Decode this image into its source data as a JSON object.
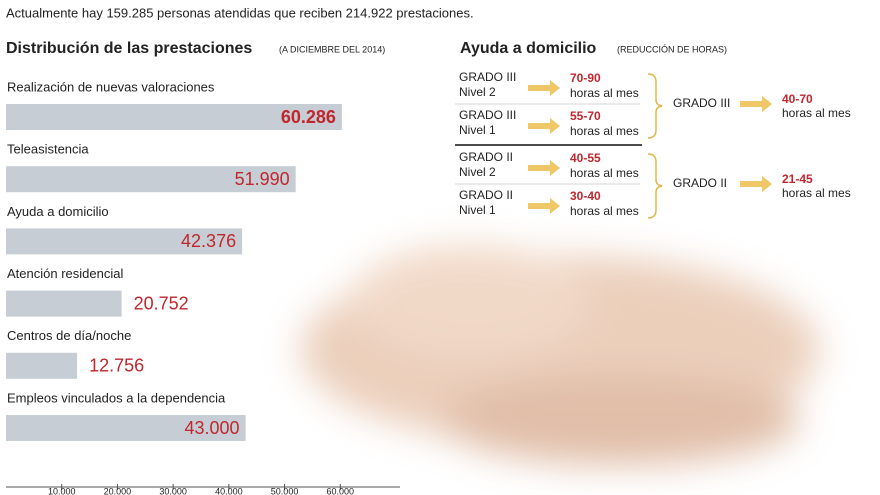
{
  "header": "Actualmente hay 159.285 personas atendidas que reciben 214.922 prestaciones.",
  "chart_data": {
    "type": "hbar",
    "title": "Distribución de las prestaciones",
    "subtitle": "(A DICIEMBRE DEL 2014)",
    "categories": [
      "Realización de nuevas valoraciones",
      "Teleasistencia",
      "Ayuda a domicilio",
      "Atención residencial",
      "Centros de día/noche",
      "Empleos vinculados a la dependencia"
    ],
    "values": [
      60286,
      51990,
      42376,
      20752,
      12756,
      43000
    ],
    "value_labels": [
      "60.286",
      "51.990",
      "42.376",
      "20.752",
      "12.756",
      "43.000"
    ],
    "color": "#c6cdd4",
    "label_color": "#c0272d",
    "xlim": [
      0,
      70000
    ],
    "xticks": [
      {
        "value": 10000,
        "label": "10.000"
      },
      {
        "value": 20000,
        "label": "20.000"
      },
      {
        "value": 30000,
        "label": "30.000"
      },
      {
        "value": 40000,
        "label": "40.000"
      },
      {
        "value": 50000,
        "label": "50.000"
      },
      {
        "value": 60000,
        "label": "60.000"
      }
    ]
  },
  "ayuda": {
    "title": "Ayuda a domicilio",
    "subtitle": "(REDUCCIÓN DE HORAS)",
    "groups": [
      {
        "label": "GRADO III",
        "hours": "40-70",
        "unit": "horas al mes",
        "rows": [
          {
            "grade": "GRADO III",
            "level": "Nivel 2",
            "hours": "70-90",
            "unit": "horas al mes"
          },
          {
            "grade": "GRADO III",
            "level": "Nivel 1",
            "hours": "55-70",
            "unit": "horas al mes"
          }
        ]
      },
      {
        "label": "GRADO II",
        "hours": "21-45",
        "unit": "horas al mes",
        "rows": [
          {
            "grade": "GRADO II",
            "level": "Nivel 2",
            "hours": "40-55",
            "unit": "horas al mes"
          },
          {
            "grade": "GRADO II",
            "level": "Nivel 1",
            "hours": "30-40",
            "unit": "horas al mes"
          }
        ]
      }
    ]
  }
}
